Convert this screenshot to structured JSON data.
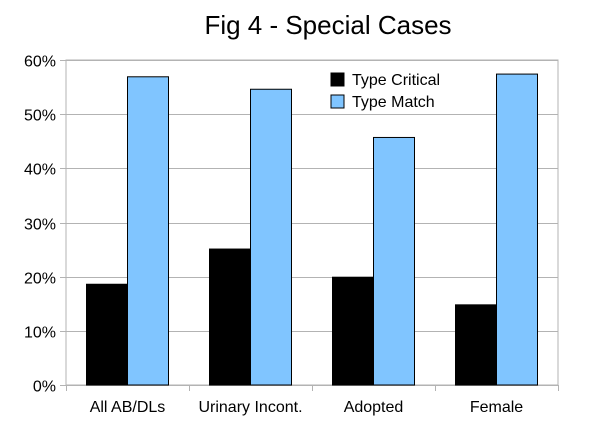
{
  "chart_data": {
    "type": "bar",
    "title": "Fig 4 - Special Cases",
    "xlabel": "",
    "ylabel": "",
    "categories": [
      "All AB/DLs",
      "Urinary Incont.",
      "Adopted",
      "Female"
    ],
    "series": [
      {
        "name": "Type Critical",
        "color": "#000000",
        "values": [
          18.6,
          25.1,
          19.9,
          14.8
        ]
      },
      {
        "name": "Type Match",
        "color": "#80c5ff",
        "values": [
          56.9,
          54.6,
          45.7,
          57.4
        ]
      }
    ],
    "ylim": [
      0,
      60
    ],
    "yticks": [
      0,
      10,
      20,
      30,
      40,
      50,
      60
    ],
    "ytick_labels": [
      "0%",
      "10%",
      "20%",
      "30%",
      "40%",
      "50%",
      "60%"
    ],
    "grid": "horizontal",
    "legend_position": "top-right"
  }
}
